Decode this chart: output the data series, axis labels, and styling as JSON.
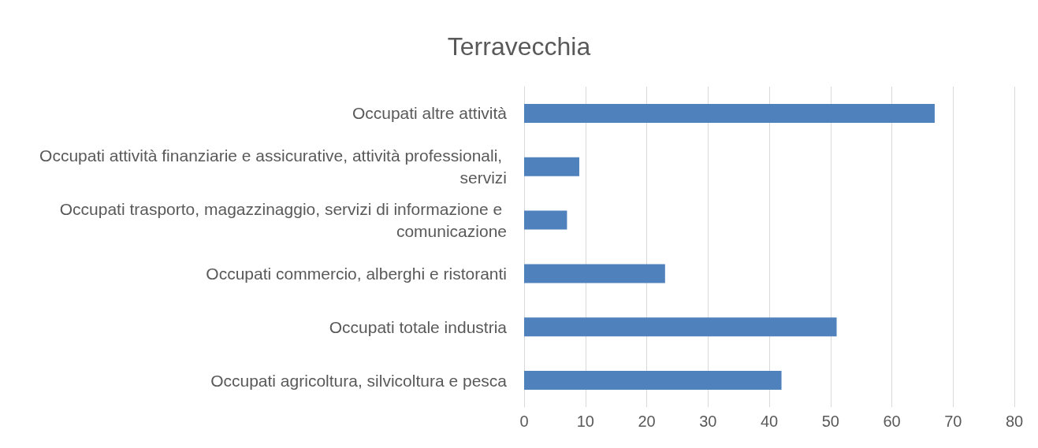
{
  "chart_data": {
    "type": "bar",
    "orientation": "horizontal",
    "title": "Terravecchia",
    "categories": [
      "Occupati altre attività",
      "Occupati attività finanziarie e assicurative, attività professionali, servizi",
      "Occupati trasporto, magazzinaggio, servizi di informazione e comunicazione",
      "Occupati commercio, alberghi e ristoranti",
      "Occupati totale industria",
      "Occupati agricoltura, silvicoltura e pesca"
    ],
    "values": [
      67,
      9,
      7,
      23,
      51,
      42
    ],
    "color": "#4f81bd",
    "xlim": [
      0,
      80
    ],
    "xticks": [
      0,
      10,
      20,
      30,
      40,
      50,
      60,
      70,
      80
    ],
    "grid": "x"
  }
}
